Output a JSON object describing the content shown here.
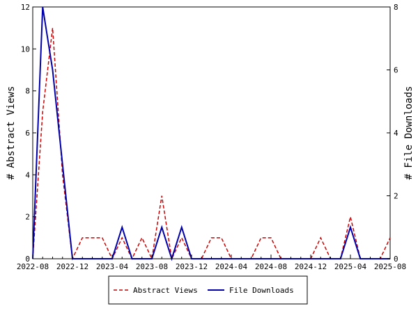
{
  "chart_data": {
    "type": "line",
    "x": [
      "2022-08",
      "2022-09",
      "2022-10",
      "2022-11",
      "2022-12",
      "2023-01",
      "2023-02",
      "2023-03",
      "2023-04",
      "2023-05",
      "2023-06",
      "2023-07",
      "2023-08",
      "2023-09",
      "2023-10",
      "2023-11",
      "2023-12",
      "2024-01",
      "2024-02",
      "2024-03",
      "2024-04",
      "2024-05",
      "2024-06",
      "2024-07",
      "2024-08",
      "2024-09",
      "2024-10",
      "2024-11",
      "2024-12",
      "2025-01",
      "2025-02",
      "2025-03",
      "2025-04",
      "2025-05",
      "2025-06",
      "2025-07",
      "2025-08"
    ],
    "series": [
      {
        "name": "Abstract Views",
        "axis": "left",
        "color": "#cc0000",
        "dash": "dashed",
        "values": [
          0,
          7,
          11,
          4,
          0,
          1,
          1,
          1,
          0,
          1,
          0,
          1,
          0,
          3,
          0,
          1,
          0,
          0,
          1,
          1,
          0,
          0,
          0,
          1,
          1,
          0,
          0,
          0,
          0,
          1,
          0,
          0,
          2,
          0,
          0,
          0,
          1
        ]
      },
      {
        "name": "File Downloads",
        "axis": "right",
        "color": "#0000aa",
        "dash": "solid",
        "values": [
          0,
          8,
          6,
          3,
          0,
          0,
          0,
          0,
          0,
          1,
          0,
          0,
          0,
          1,
          0,
          1,
          0,
          0,
          0,
          0,
          0,
          0,
          0,
          0,
          0,
          0,
          0,
          0,
          0,
          0,
          0,
          0,
          1,
          0,
          0,
          0,
          0
        ]
      }
    ],
    "xticks": [
      "2022-08",
      "2022-12",
      "2023-04",
      "2023-08",
      "2023-12",
      "2024-04",
      "2024-08",
      "2024-12",
      "2025-04",
      "2025-08"
    ],
    "ylabel": "# Abstract Views",
    "y2label": "# File Downloads",
    "ylim": [
      0,
      12
    ],
    "yticks": [
      0,
      2,
      4,
      6,
      8,
      10,
      12
    ],
    "y2lim": [
      0,
      8
    ],
    "y2ticks": [
      0,
      2,
      4,
      6,
      8
    ],
    "grid": false,
    "legend_placement": "bottom-center"
  }
}
